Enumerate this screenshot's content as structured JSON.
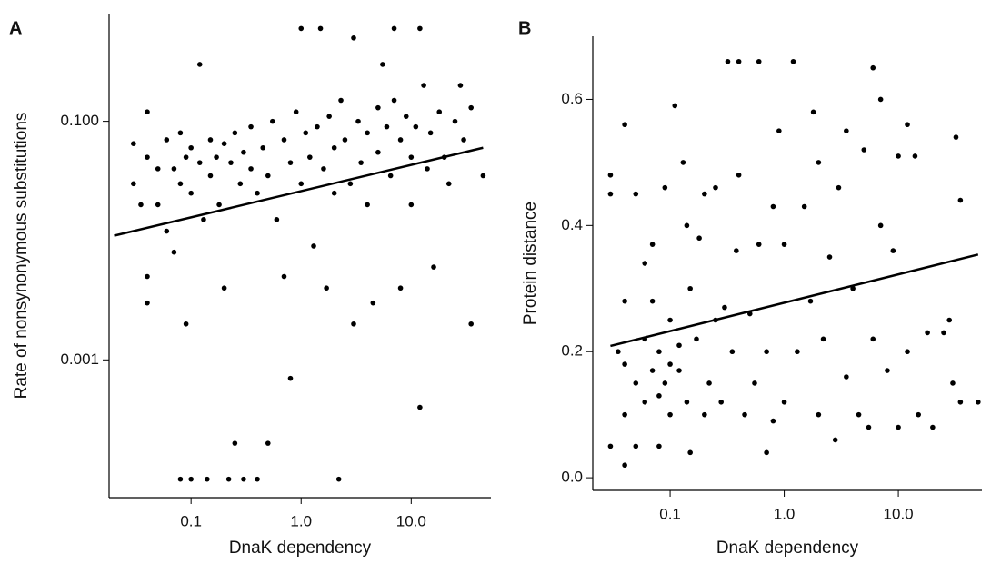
{
  "chart_data": [
    {
      "type": "scatter",
      "panel_label": "A",
      "xlabel": "DnaK dependency",
      "ylabel": "Rate of nonsynonymous substitutions",
      "xscale": "log",
      "yscale": "log",
      "color": "#000000",
      "xlim": [
        0.018,
        53
      ],
      "ylim": [
        7e-05,
        0.8
      ],
      "xticks": [
        0.1,
        {
          "value": 1,
          "label": "1.0"
        },
        {
          "value": 10,
          "label": "10.0"
        }
      ],
      "yticks": [
        0.001,
        {
          "value": 0.1,
          "label": "0.100"
        }
      ],
      "x": [
        0.03,
        0.03,
        0.035,
        0.04,
        0.04,
        0.04,
        0.04,
        0.05,
        0.05,
        0.06,
        0.06,
        0.07,
        0.07,
        0.08,
        0.08,
        0.08,
        0.09,
        0.09,
        0.1,
        0.1,
        0.1,
        0.12,
        0.12,
        0.13,
        0.14,
        0.15,
        0.15,
        0.17,
        0.18,
        0.2,
        0.2,
        0.22,
        0.23,
        0.25,
        0.25,
        0.28,
        0.3,
        0.3,
        0.35,
        0.35,
        0.4,
        0.4,
        0.45,
        0.5,
        0.5,
        0.55,
        0.6,
        0.7,
        0.7,
        0.8,
        0.8,
        0.9,
        1.0,
        1.0,
        1.1,
        1.2,
        1.3,
        1.4,
        1.5,
        1.6,
        1.7,
        1.8,
        2.0,
        2.0,
        2.2,
        2.3,
        2.5,
        2.8,
        3.0,
        3.0,
        3.3,
        3.5,
        4.0,
        4.0,
        4.5,
        5.0,
        5.0,
        5.5,
        6.0,
        6.5,
        7.0,
        7.0,
        8.0,
        8.0,
        9.0,
        10,
        10,
        11,
        12,
        12,
        13,
        14,
        15,
        16,
        18,
        20,
        22,
        25,
        28,
        30,
        35,
        35,
        45
      ],
      "y": [
        0.03,
        0.065,
        0.02,
        0.12,
        0.005,
        0.05,
        0.003,
        0.04,
        0.02,
        0.07,
        0.012,
        0.04,
        0.008,
        0.08,
        0.03,
        0.0001,
        0.05,
        0.002,
        0.06,
        0.025,
        0.0001,
        0.3,
        0.045,
        0.015,
        0.0001,
        0.07,
        0.035,
        0.05,
        0.02,
        0.065,
        0.004,
        0.0001,
        0.045,
        0.0002,
        0.08,
        0.03,
        0.055,
        0.0001,
        0.04,
        0.09,
        0.0001,
        0.025,
        0.06,
        0.0002,
        0.035,
        0.1,
        0.015,
        0.07,
        0.005,
        0.0007,
        0.045,
        0.12,
        0.03,
        0.6,
        0.08,
        0.05,
        0.009,
        0.09,
        0.6,
        0.04,
        0.004,
        0.11,
        0.06,
        0.025,
        0.0001,
        0.15,
        0.07,
        0.03,
        0.5,
        0.002,
        0.1,
        0.045,
        0.08,
        0.02,
        0.003,
        0.13,
        0.055,
        0.3,
        0.09,
        0.035,
        0.6,
        0.15,
        0.07,
        0.004,
        0.11,
        0.05,
        0.02,
        0.09,
        0.6,
        0.0004,
        0.2,
        0.04,
        0.08,
        0.006,
        0.12,
        0.05,
        0.03,
        0.1,
        0.2,
        0.07,
        0.002,
        0.13,
        0.035
      ],
      "trend_line": {
        "x": [
          0.02,
          45
        ],
        "y": [
          0.011,
          0.06
        ]
      }
    },
    {
      "type": "scatter",
      "panel_label": "B",
      "xlabel": "DnaK dependency",
      "ylabel": "Protein distance",
      "xscale": "log",
      "yscale": "linear",
      "color": "#000000",
      "xlim": [
        0.021,
        54
      ],
      "ylim": [
        -0.02,
        0.7
      ],
      "xticks": [
        0.1,
        {
          "value": 1,
          "label": "1.0"
        },
        {
          "value": 10,
          "label": "10.0"
        }
      ],
      "yticks": [
        {
          "value": 0,
          "label": "0.0"
        },
        0.2,
        0.4,
        0.6
      ],
      "x": [
        0.03,
        0.03,
        0.03,
        0.035,
        0.04,
        0.04,
        0.04,
        0.04,
        0.04,
        0.05,
        0.05,
        0.05,
        0.06,
        0.06,
        0.06,
        0.07,
        0.07,
        0.07,
        0.08,
        0.08,
        0.08,
        0.09,
        0.09,
        0.1,
        0.1,
        0.1,
        0.11,
        0.12,
        0.12,
        0.13,
        0.14,
        0.14,
        0.15,
        0.15,
        0.17,
        0.18,
        0.2,
        0.2,
        0.22,
        0.25,
        0.25,
        0.28,
        0.3,
        0.32,
        0.35,
        0.38,
        0.4,
        0.4,
        0.45,
        0.5,
        0.55,
        0.6,
        0.6,
        0.7,
        0.7,
        0.8,
        0.8,
        0.9,
        1.0,
        1.0,
        1.2,
        1.3,
        1.5,
        1.7,
        1.8,
        2.0,
        2.0,
        2.2,
        2.5,
        2.8,
        3.0,
        3.5,
        3.5,
        4.0,
        4.5,
        5.0,
        5.5,
        6.0,
        6.0,
        7.0,
        7.0,
        8.0,
        9.0,
        10,
        10,
        12,
        12,
        14,
        15,
        18,
        20,
        25,
        28,
        30,
        32,
        35,
        35,
        50
      ],
      "y": [
        0.05,
        0.48,
        0.45,
        0.2,
        0.56,
        0.18,
        0.1,
        0.02,
        0.28,
        0.15,
        0.45,
        0.05,
        0.34,
        0.22,
        0.12,
        0.37,
        0.17,
        0.28,
        0.05,
        0.2,
        0.13,
        0.46,
        0.15,
        0.25,
        0.18,
        0.1,
        0.59,
        0.17,
        0.21,
        0.5,
        0.4,
        0.12,
        0.04,
        0.3,
        0.22,
        0.38,
        0.1,
        0.45,
        0.15,
        0.25,
        0.46,
        0.12,
        0.27,
        0.66,
        0.2,
        0.36,
        0.66,
        0.48,
        0.1,
        0.26,
        0.15,
        0.66,
        0.37,
        0.04,
        0.2,
        0.09,
        0.43,
        0.55,
        0.12,
        0.37,
        0.66,
        0.2,
        0.43,
        0.28,
        0.58,
        0.5,
        0.1,
        0.22,
        0.35,
        0.06,
        0.46,
        0.16,
        0.55,
        0.3,
        0.1,
        0.52,
        0.08,
        0.65,
        0.22,
        0.6,
        0.4,
        0.17,
        0.36,
        0.51,
        0.08,
        0.56,
        0.2,
        0.51,
        0.1,
        0.23,
        0.08,
        0.23,
        0.25,
        0.15,
        0.54,
        0.44,
        0.12,
        0.12
      ],
      "trend_line": {
        "x": [
          0.03,
          50
        ],
        "y": [
          0.209,
          0.354
        ]
      }
    }
  ]
}
